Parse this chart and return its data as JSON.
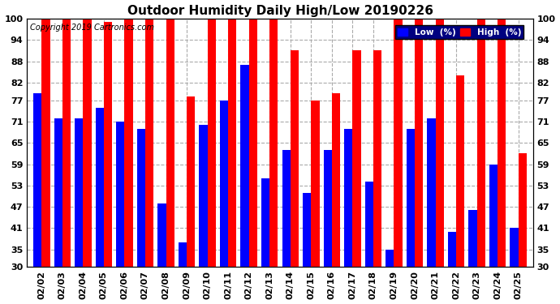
{
  "title": "Outdoor Humidity Daily High/Low 20190226",
  "copyright": "Copyright 2019 Cartronics.com",
  "dates": [
    "02/02",
    "02/03",
    "02/04",
    "02/05",
    "02/06",
    "02/07",
    "02/08",
    "02/09",
    "02/10",
    "02/11",
    "02/12",
    "02/13",
    "02/14",
    "02/15",
    "02/16",
    "02/17",
    "02/18",
    "02/19",
    "02/20",
    "02/21",
    "02/22",
    "02/23",
    "02/24",
    "02/25"
  ],
  "high": [
    100,
    100,
    100,
    99,
    100,
    100,
    100,
    78,
    100,
    100,
    100,
    100,
    91,
    77,
    79,
    91,
    91,
    100,
    100,
    100,
    84,
    100,
    100,
    62
  ],
  "low": [
    79,
    72,
    72,
    75,
    71,
    69,
    48,
    37,
    70,
    77,
    87,
    55,
    63,
    51,
    63,
    69,
    54,
    35,
    69,
    72,
    40,
    46,
    59,
    41
  ],
  "ymin": 30,
  "ylim": [
    30,
    100
  ],
  "yticks": [
    30,
    35,
    41,
    47,
    53,
    59,
    65,
    71,
    77,
    82,
    88,
    94,
    100
  ],
  "bar_width": 0.4,
  "low_color": "#0000ff",
  "high_color": "#ff0000",
  "bg_color": "#ffffff",
  "plot_bg_color": "#ffffff",
  "grid_color": "#aaaaaa",
  "legend_low_label": "Low  (%)",
  "legend_high_label": "High  (%)",
  "title_fontsize": 11,
  "tick_fontsize": 8,
  "copyright_fontsize": 7
}
